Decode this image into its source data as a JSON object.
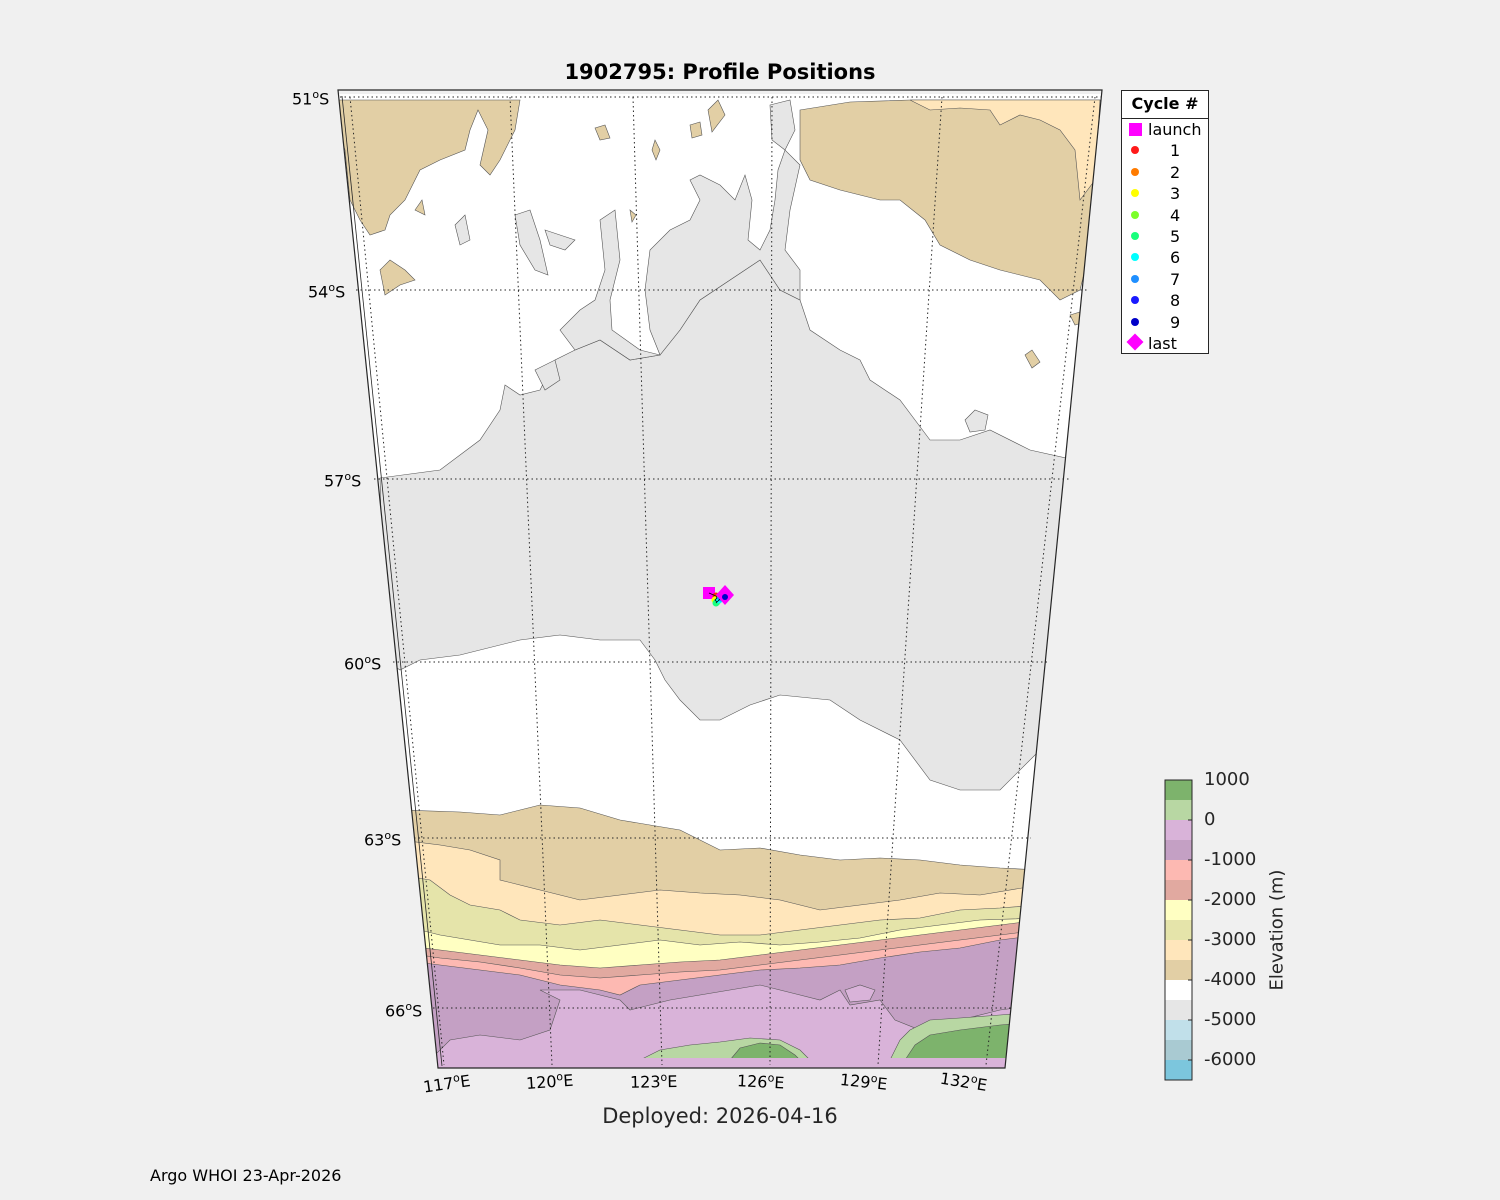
{
  "title": "1902795: Profile Positions",
  "deployed": "Deployed: 2026-04-16",
  "footer": "Argo WHOI 23-Apr-2026",
  "legend": {
    "title": "Cycle #",
    "launch_label": "launch",
    "last_label": "last",
    "cycles": [
      {
        "n": "1",
        "color": "#ff1a1a"
      },
      {
        "n": "2",
        "color": "#ff7b00"
      },
      {
        "n": "3",
        "color": "#ffff00"
      },
      {
        "n": "4",
        "color": "#7cff2a"
      },
      {
        "n": "5",
        "color": "#19ff7c"
      },
      {
        "n": "6",
        "color": "#00ffff"
      },
      {
        "n": "7",
        "color": "#1f8fff"
      },
      {
        "n": "8",
        "color": "#1a1aff"
      },
      {
        "n": "9",
        "color": "#0000c8"
      }
    ],
    "launch_color": "#ff00ff",
    "last_color": "#ff00ff"
  },
  "axes": {
    "lat_labels": [
      "51",
      "54",
      "57",
      "60",
      "63",
      "66"
    ],
    "lon_labels": [
      "117",
      "120",
      "123",
      "126",
      "129",
      "132"
    ],
    "lat_hemisphere": "S",
    "lon_hemisphere": "E",
    "degree_mark": "o"
  },
  "colorbar": {
    "title": "Elevation (m)",
    "labels": [
      "1000",
      "0",
      "-1000",
      "-2000",
      "-3000",
      "-4000",
      "-5000",
      "-6000"
    ],
    "colors": [
      "#7db36c",
      "#b8d7a3",
      "#d9b3d9",
      "#c4a0c4",
      "#fdb9b2",
      "#e1a9a0",
      "#ffffc2",
      "#e5e4aa",
      "#ffe6bb",
      "#e2cfa5",
      "#ffffff",
      "#e6e6e6",
      "#c1e0ea",
      "#a9cad2",
      "#7cc6dd"
    ]
  },
  "colors": {
    "launch": "#ff00ff",
    "last": "#ff00ff"
  }
}
